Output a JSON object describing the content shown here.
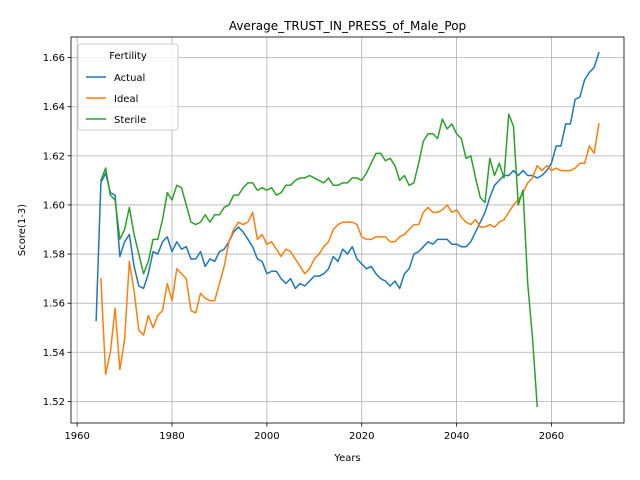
{
  "chart_data": {
    "type": "line",
    "title": "Average_TRUST_IN_PRESS_of_Male_Pop",
    "xlabel": "Years",
    "ylabel": "Score(1-3)",
    "xlim": [
      1958.7,
      2075.3
    ],
    "ylim": [
      1.5112,
      1.6684
    ],
    "xticks": [
      1960,
      1980,
      2000,
      2020,
      2040,
      2060
    ],
    "yticks": [
      1.52,
      1.54,
      1.56,
      1.58,
      1.6,
      1.62,
      1.64,
      1.66
    ],
    "grid": true,
    "legend": {
      "title": "Fertility",
      "placement": "upper-left"
    },
    "series": [
      {
        "name": "Actual",
        "color": "#1f77b4",
        "x": [
          1964,
          1965,
          1966,
          1967,
          1968,
          1969,
          1970,
          1971,
          1972,
          1973,
          1974,
          1975,
          1976,
          1977,
          1978,
          1979,
          1980,
          1981,
          1982,
          1983,
          1984,
          1985,
          1986,
          1987,
          1988,
          1989,
          1990,
          1991,
          1992,
          1993,
          1994,
          1995,
          1996,
          1997,
          1998,
          1999,
          2000,
          2001,
          2002,
          2003,
          2004,
          2005,
          2006,
          2007,
          2008,
          2009,
          2010,
          2011,
          2012,
          2013,
          2014,
          2015,
          2016,
          2017,
          2018,
          2019,
          2020,
          2021,
          2022,
          2023,
          2024,
          2025,
          2026,
          2027,
          2028,
          2029,
          2030,
          2031,
          2032,
          2033,
          2034,
          2035,
          2036,
          2037,
          2038,
          2039,
          2040,
          2041,
          2042,
          2043,
          2044,
          2045,
          2046,
          2047,
          2048,
          2049,
          2050,
          2051,
          2052,
          2053,
          2054,
          2055,
          2056,
          2057,
          2058,
          2059,
          2060,
          2061,
          2062,
          2063,
          2064,
          2065,
          2066,
          2067,
          2068,
          2069,
          2070
        ],
        "values": [
          1.553,
          1.609,
          1.613,
          1.605,
          1.604,
          1.579,
          1.585,
          1.588,
          1.575,
          1.567,
          1.566,
          1.572,
          1.581,
          1.58,
          1.585,
          1.587,
          1.581,
          1.585,
          1.582,
          1.583,
          1.578,
          1.578,
          1.581,
          1.575,
          1.578,
          1.577,
          1.581,
          1.582,
          1.585,
          1.589,
          1.591,
          1.589,
          1.586,
          1.583,
          1.578,
          1.577,
          1.572,
          1.573,
          1.573,
          1.57,
          1.568,
          1.57,
          1.566,
          1.568,
          1.567,
          1.569,
          1.571,
          1.571,
          1.572,
          1.574,
          1.579,
          1.577,
          1.582,
          1.58,
          1.583,
          1.578,
          1.576,
          1.574,
          1.575,
          1.572,
          1.57,
          1.569,
          1.567,
          1.569,
          1.566,
          1.572,
          1.574,
          1.58,
          1.581,
          1.583,
          1.585,
          1.584,
          1.586,
          1.586,
          1.586,
          1.584,
          1.584,
          1.583,
          1.583,
          1.585,
          1.589,
          1.593,
          1.597,
          1.603,
          1.608,
          1.61,
          1.612,
          1.612,
          1.614,
          1.612,
          1.614,
          1.612,
          1.612,
          1.611,
          1.612,
          1.614,
          1.617,
          1.624,
          1.624,
          1.633,
          1.633,
          1.643,
          1.644,
          1.651,
          1.654,
          1.656,
          1.662
        ]
      },
      {
        "name": "Ideal",
        "color": "#ff7f0e",
        "x": [
          1965,
          1966,
          1967,
          1968,
          1969,
          1970,
          1971,
          1972,
          1973,
          1974,
          1975,
          1976,
          1977,
          1978,
          1979,
          1980,
          1981,
          1982,
          1983,
          1984,
          1985,
          1986,
          1987,
          1988,
          1989,
          1990,
          1991,
          1992,
          1993,
          1994,
          1995,
          1996,
          1997,
          1998,
          1999,
          2000,
          2001,
          2002,
          2003,
          2004,
          2005,
          2006,
          2007,
          2008,
          2009,
          2010,
          2011,
          2012,
          2013,
          2014,
          2015,
          2016,
          2017,
          2018,
          2019,
          2020,
          2021,
          2022,
          2023,
          2024,
          2025,
          2026,
          2027,
          2028,
          2029,
          2030,
          2031,
          2032,
          2033,
          2034,
          2035,
          2036,
          2037,
          2038,
          2039,
          2040,
          2041,
          2042,
          2043,
          2044,
          2045,
          2046,
          2047,
          2048,
          2049,
          2050,
          2051,
          2052,
          2053,
          2054,
          2055,
          2056,
          2057,
          2058,
          2059,
          2060,
          2061,
          2062,
          2063,
          2064,
          2065,
          2066,
          2067,
          2068,
          2069,
          2070
        ],
        "values": [
          1.57,
          1.531,
          1.54,
          1.558,
          1.533,
          1.545,
          1.577,
          1.565,
          1.549,
          1.547,
          1.555,
          1.55,
          1.555,
          1.557,
          1.568,
          1.561,
          1.574,
          1.572,
          1.57,
          1.557,
          1.556,
          1.564,
          1.562,
          1.561,
          1.561,
          1.568,
          1.575,
          1.585,
          1.59,
          1.593,
          1.592,
          1.593,
          1.597,
          1.586,
          1.588,
          1.584,
          1.585,
          1.582,
          1.579,
          1.582,
          1.581,
          1.578,
          1.575,
          1.572,
          1.574,
          1.578,
          1.58,
          1.583,
          1.585,
          1.59,
          1.592,
          1.593,
          1.593,
          1.593,
          1.592,
          1.587,
          1.586,
          1.586,
          1.587,
          1.587,
          1.587,
          1.585,
          1.585,
          1.587,
          1.588,
          1.59,
          1.592,
          1.592,
          1.597,
          1.599,
          1.597,
          1.597,
          1.598,
          1.6,
          1.597,
          1.598,
          1.595,
          1.593,
          1.592,
          1.594,
          1.591,
          1.591,
          1.592,
          1.591,
          1.593,
          1.594,
          1.597,
          1.6,
          1.602,
          1.605,
          1.609,
          1.611,
          1.616,
          1.614,
          1.616,
          1.614,
          1.615,
          1.614,
          1.614,
          1.614,
          1.615,
          1.617,
          1.617,
          1.624,
          1.621,
          1.633
        ]
      },
      {
        "name": "Sterile",
        "color": "#2ca02c",
        "x": [
          1965,
          1966,
          1967,
          1968,
          1969,
          1970,
          1971,
          1972,
          1973,
          1974,
          1975,
          1976,
          1977,
          1978,
          1979,
          1980,
          1981,
          1982,
          1983,
          1984,
          1985,
          1986,
          1987,
          1988,
          1989,
          1990,
          1991,
          1992,
          1993,
          1994,
          1995,
          1996,
          1997,
          1998,
          1999,
          2000,
          2001,
          2002,
          2003,
          2004,
          2005,
          2006,
          2007,
          2008,
          2009,
          2010,
          2011,
          2012,
          2013,
          2014,
          2015,
          2016,
          2017,
          2018,
          2019,
          2020,
          2021,
          2022,
          2023,
          2024,
          2025,
          2026,
          2027,
          2028,
          2029,
          2030,
          2031,
          2032,
          2033,
          2034,
          2035,
          2036,
          2037,
          2038,
          2039,
          2040,
          2041,
          2042,
          2043,
          2044,
          2045,
          2046,
          2047,
          2048,
          2049,
          2050,
          2051,
          2052,
          2053,
          2054,
          2055,
          2056,
          2057
        ],
        "values": [
          1.61,
          1.615,
          1.604,
          1.602,
          1.586,
          1.59,
          1.599,
          1.588,
          1.58,
          1.572,
          1.577,
          1.586,
          1.586,
          1.594,
          1.605,
          1.602,
          1.608,
          1.607,
          1.6,
          1.593,
          1.592,
          1.593,
          1.596,
          1.593,
          1.596,
          1.596,
          1.599,
          1.6,
          1.604,
          1.604,
          1.607,
          1.609,
          1.609,
          1.606,
          1.607,
          1.606,
          1.607,
          1.604,
          1.605,
          1.608,
          1.608,
          1.61,
          1.611,
          1.611,
          1.612,
          1.611,
          1.61,
          1.609,
          1.611,
          1.608,
          1.608,
          1.609,
          1.609,
          1.611,
          1.611,
          1.61,
          1.613,
          1.617,
          1.621,
          1.621,
          1.618,
          1.619,
          1.616,
          1.61,
          1.612,
          1.608,
          1.609,
          1.617,
          1.626,
          1.629,
          1.629,
          1.627,
          1.635,
          1.631,
          1.633,
          1.629,
          1.627,
          1.619,
          1.62,
          1.611,
          1.603,
          1.601,
          1.619,
          1.612,
          1.617,
          1.611,
          1.637,
          1.632,
          1.6,
          1.606,
          1.568,
          1.546,
          1.518
        ]
      }
    ]
  }
}
